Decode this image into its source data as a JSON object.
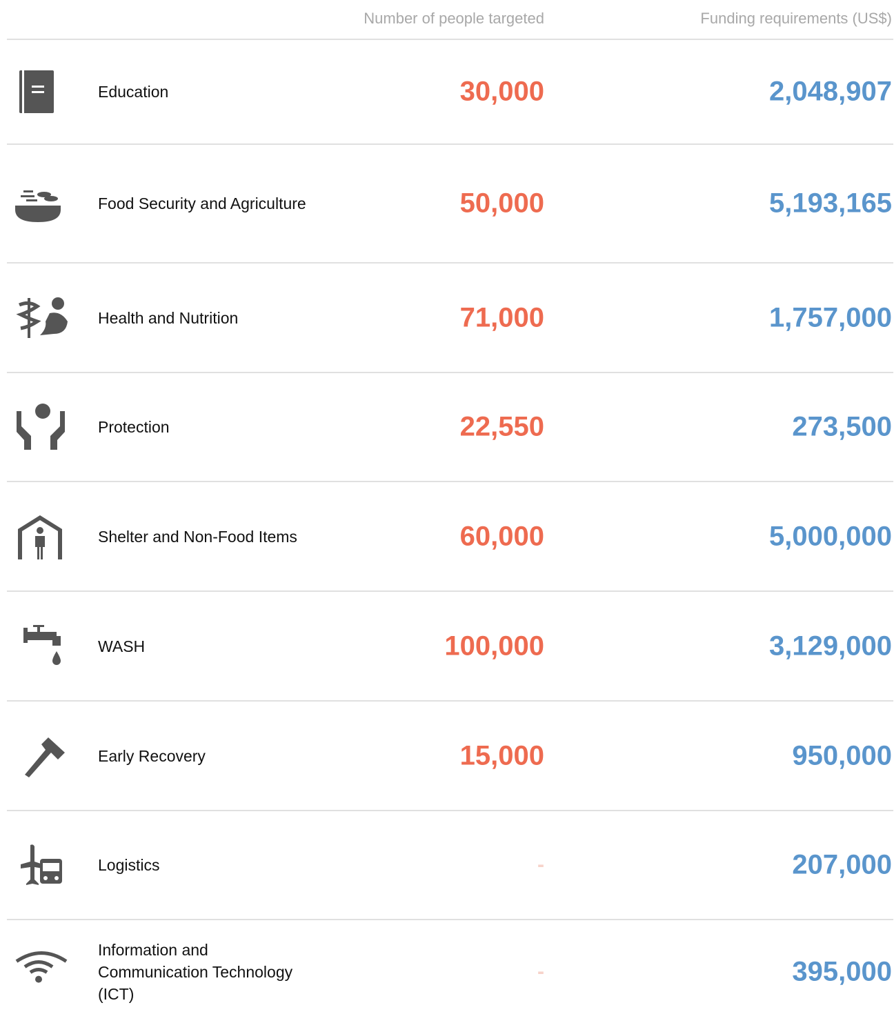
{
  "table": {
    "headers": [
      "Number of people targeted",
      "Funding requirements (US$)"
    ],
    "rows": [
      [
        "Education",
        "30,000",
        "2,048,907"
      ],
      [
        "Food Security and Agriculture",
        "50,000",
        "5,193,165"
      ],
      [
        "Health and Nutrition",
        "71,000",
        "1,757,000"
      ],
      [
        "Protection",
        "22,550",
        "273,500"
      ],
      [
        "Shelter and Non-Food Items",
        "60,000",
        "5,000,000"
      ],
      [
        "WASH",
        "100,000",
        "3,129,000"
      ],
      [
        "Early Recovery",
        "15,000",
        "950,000"
      ],
      [
        "Logistics",
        "-",
        "207,000"
      ],
      [
        "Information and Communication Technology (ICT)",
        "-",
        "395,000"
      ]
    ]
  }
}
